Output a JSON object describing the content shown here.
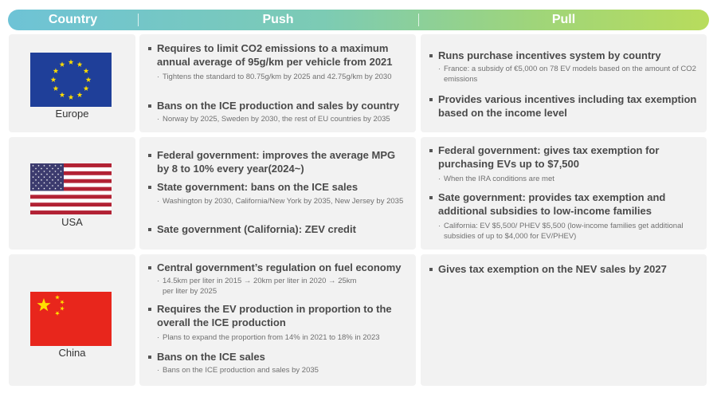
{
  "header": {
    "country": "Country",
    "push": "Push",
    "pull": "Pull"
  },
  "rows": [
    {
      "country": "Europe",
      "flag_icon": "eu-flag-icon",
      "push": [
        {
          "text": "Requires to limit CO2 emissions to a maximum annual average of 95g/km per vehicle from 2021",
          "note": "Tightens the standard to 80.75g/km by 2025 and 42.75g/km by 2030"
        },
        {
          "text": "Bans on the ICE production and sales by country",
          "note": "Norway by 2025, Sweden by 2030, the rest of EU countries by 2035"
        }
      ],
      "pull": [
        {
          "text": "Runs purchase incentives system by country",
          "note": "France: a subsidy of €5,000 on 78 EV models based on the amount of CO2 emissions"
        },
        {
          "text": "Provides various incentives including tax exemption based on the income level"
        }
      ]
    },
    {
      "country": "USA",
      "flag_icon": "us-flag-icon",
      "push": [
        {
          "text": "Federal government: improves the average MPG by 8 to 10% every year(2024~)"
        },
        {
          "text": "State government: bans on the ICE sales",
          "note": "Washington by 2030, California/New York by 2035, New Jersey by 2035"
        },
        {
          "text": "Sate government (California): ZEV credit"
        }
      ],
      "pull": [
        {
          "text": "Federal government: gives tax exemption for purchasing EVs up to $7,500",
          "note": "When the IRA conditions are met"
        },
        {
          "text": "Sate government: provides tax exemption and additional subsidies to low-income families",
          "note": "California: EV $5,500/ PHEV $5,500 (low-income families get additional subsidies of up to $4,000 for EV/PHEV)"
        }
      ]
    },
    {
      "country": "China",
      "flag_icon": "china-flag-icon",
      "push": [
        {
          "text": "Central government’s regulation on fuel economy",
          "note": "14.5km per liter in 2015 → 20km per liter in 2020 → 25km per liter by 2025"
        },
        {
          "text": "Requires the EV production in proportion to the overall the ICE production",
          "note": "Plans to expand the proportion from 14% in 2021 to 18% in 2023"
        },
        {
          "text": "Bans on the ICE sales",
          "note": "Bans on the ICE production and sales by 2035"
        }
      ],
      "pull": [
        {
          "text": "Gives tax exemption on the NEV sales by 2027"
        }
      ]
    }
  ],
  "colors": {
    "header_start": "#6ec3d6",
    "header_end": "#b8dc5c",
    "cell_bg": "#f2f2f2",
    "text": "#4a4a4a",
    "note_text": "#707070"
  }
}
